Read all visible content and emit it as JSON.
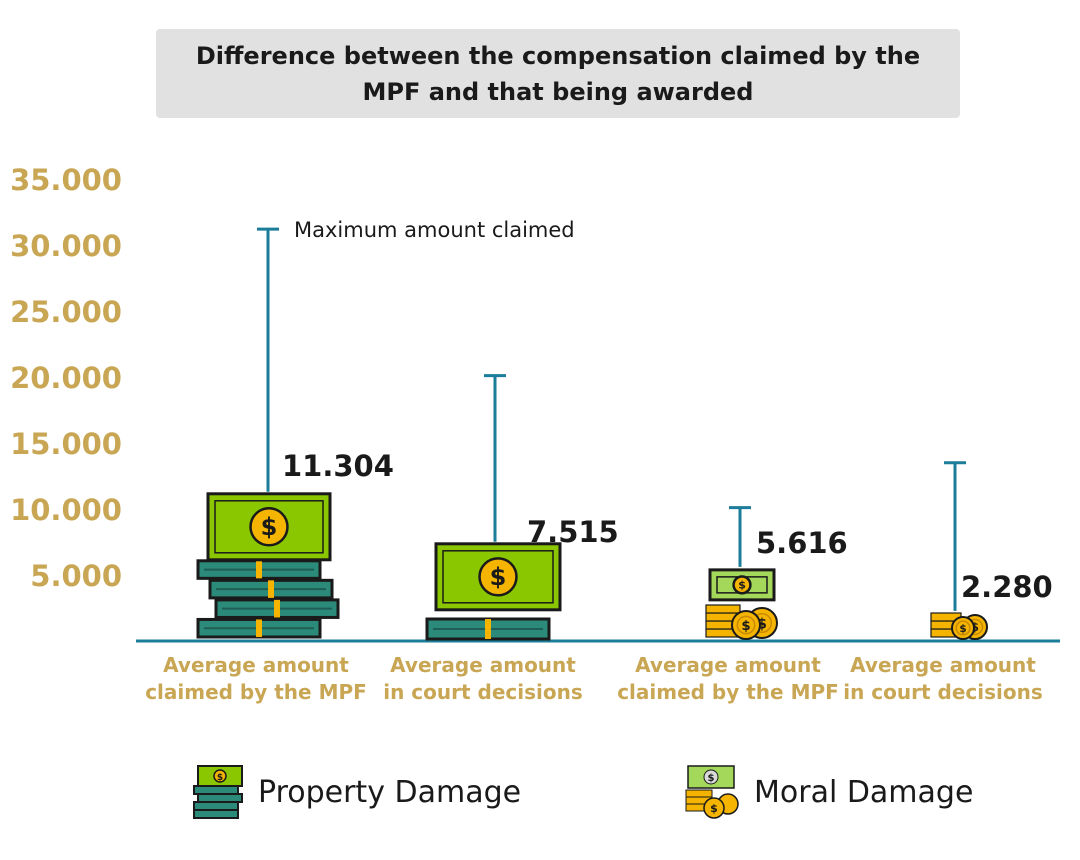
{
  "title": "Difference between the compensation claimed by the MPF and that being awarded",
  "annotation": "Maximum amount claimed",
  "colors": {
    "axis": "#1b7d99",
    "tick": "#c8a654",
    "cat_label": "#c8a654",
    "value_label": "#1a1a1a",
    "bill_green": "#8ac700",
    "bill_light": "#a3d85a",
    "stack_teal": "#2b8a7a",
    "coin_gold": "#f4b400",
    "outline": "#1a1a1a"
  },
  "chart_data": {
    "type": "bar",
    "title": "Difference between the compensation claimed by the MPF and that being awarded",
    "xlabel": "",
    "ylabel": "",
    "ylim": [
      0,
      35000
    ],
    "yticks": [
      5000,
      10000,
      15000,
      20000,
      25000,
      30000,
      35000
    ],
    "ytick_labels": [
      "5.000",
      "10.000",
      "15.000",
      "20.000",
      "25.000",
      "30.000",
      "35.000"
    ],
    "grid": false,
    "legend_position": "bottom",
    "categories": [
      "Average amount claimed by the MPF",
      "Average amount in court decisions",
      "Average amount claimed by the MPF",
      "Average amount in court decisions"
    ],
    "category_lines": [
      [
        "Average amount",
        "claimed by the MPF"
      ],
      [
        "Average amount",
        "in court decisions"
      ],
      [
        "Average amount",
        "claimed by the MPF"
      ],
      [
        "Average amount",
        "in court decisions"
      ]
    ],
    "series_of_bar": [
      "Property Damage",
      "Property Damage",
      "Moral Damage",
      "Moral Damage"
    ],
    "values": [
      11304,
      7515,
      5616,
      2280
    ],
    "value_labels": [
      "11.304",
      "7.515",
      "5.616",
      "2.280"
    ],
    "max_claimed": [
      31200,
      20100,
      10100,
      13500
    ],
    "legend": [
      "Property Damage",
      "Moral Damage"
    ]
  }
}
